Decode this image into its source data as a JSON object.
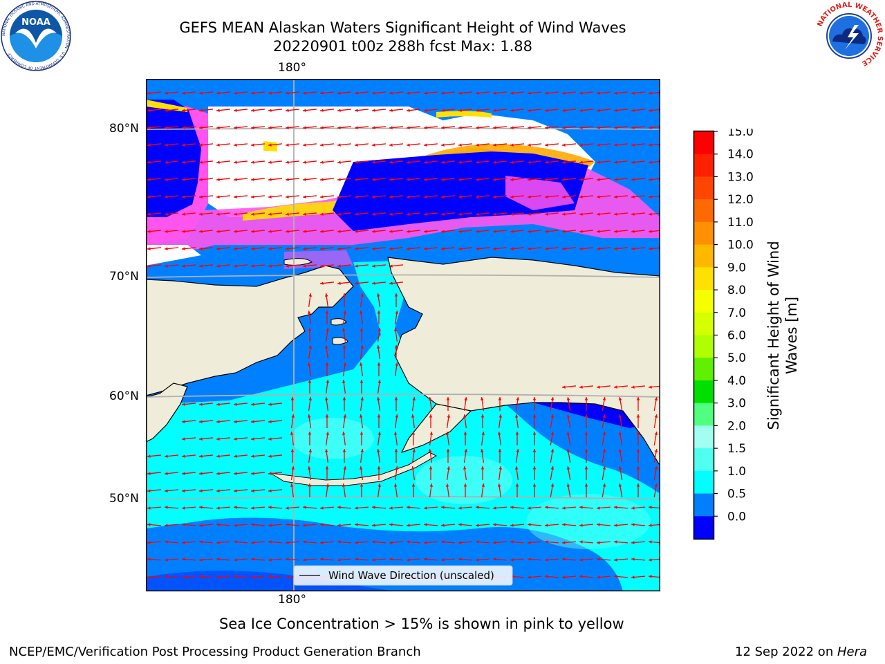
{
  "header": {
    "title_line1": "GEFS MEAN Alaskan Waters Significant Height of Wind Waves",
    "title_line2": "20220901 t00z 288h fcst   Max: 1.88"
  },
  "logos": {
    "noaa_text": "NOAA",
    "noaa_ring": "NATIONAL OCEANIC AND ATMOSPHERIC ADMINISTRATION · U.S. DEPARTMENT OF COMMERCE",
    "nws_ring": "NATIONAL WEATHER SERVICE"
  },
  "map": {
    "lon_label_top": "180°",
    "lon_label_bottom": "180°",
    "lat_labels": [
      "80°N",
      "70°N",
      "60°N",
      "50°N"
    ],
    "legend_label": "Wind Wave Direction (unscaled)",
    "colors": {
      "land": "#efecd9",
      "ocean_deep": "#0000ff",
      "ocean_mid": "#0080ff",
      "ocean_light": "#00ffff",
      "arrow": "#ff0000",
      "ice_pink": "#ff55ee",
      "ice_yellow": "#ffe000"
    }
  },
  "colorbar": {
    "label_line1": "Significant Height of Wind",
    "label_line2": "Waves [m]",
    "ticks": [
      "15.0",
      "14.0",
      "13.0",
      "12.0",
      "11.0",
      "10.0",
      "9.0",
      "8.0",
      "7.0",
      "6.0",
      "5.0",
      "4.0",
      "3.0",
      "2.0",
      "1.5",
      "1.0",
      "0.5",
      "0.0"
    ],
    "colors_top_to_bottom": [
      "#ff0000",
      "#ff2000",
      "#ff4600",
      "#ff6a00",
      "#ff9000",
      "#ffb800",
      "#ffe000",
      "#f5ff00",
      "#d6ff00",
      "#b0ff00",
      "#60f000",
      "#00e000",
      "#50ff80",
      "#a0fff0",
      "#50fff0",
      "#00ffff",
      "#0080ff",
      "#0000ff"
    ]
  },
  "caption": "Sea Ice Concentration > 15% is shown in pink to yellow",
  "footer": {
    "left": "NCEP/EMC/Verification Post Processing Product Generation Branch",
    "right_date": "12 Sep 2022 on",
    "right_host": "Hera"
  }
}
